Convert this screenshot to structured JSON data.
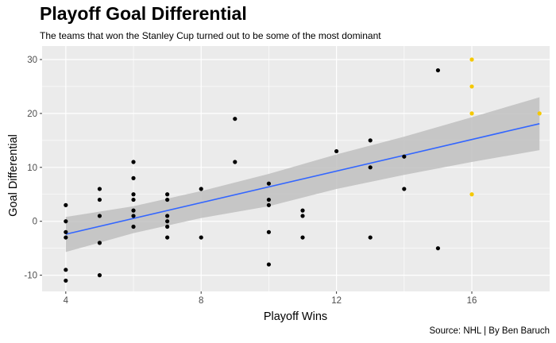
{
  "title": "Playoff Goal Differential",
  "subtitle": "The teams that won the Stanley Cup turned out to be some of the most dominant",
  "caption": "Source: NHL | By Ben Baruch",
  "chart_data": {
    "type": "scatter",
    "xlabel": "Playoff Wins",
    "ylabel": "Goal Differential",
    "xlim": [
      3.3,
      18.3
    ],
    "ylim": [
      -13,
      32.5
    ],
    "x_ticks": [
      4,
      8,
      12,
      16
    ],
    "y_ticks": [
      -10,
      0,
      10,
      20,
      30
    ],
    "x_tick_labels": [
      "4",
      "8",
      "12",
      "16"
    ],
    "y_tick_labels": [
      "-10",
      "0",
      "10",
      "20",
      "30"
    ],
    "grid": true,
    "colors": {
      "panel": "#ebebeb",
      "grid": "#ffffff",
      "point": "#000000",
      "champion": "#f5c800",
      "trend": "#3366ff",
      "band": "#c0c0c0"
    },
    "points": [
      {
        "x": 4,
        "y": 3
      },
      {
        "x": 4,
        "y": 0
      },
      {
        "x": 4,
        "y": -2
      },
      {
        "x": 4,
        "y": -3
      },
      {
        "x": 4,
        "y": -9
      },
      {
        "x": 4,
        "y": -11
      },
      {
        "x": 5,
        "y": 6
      },
      {
        "x": 5,
        "y": 4
      },
      {
        "x": 5,
        "y": 1
      },
      {
        "x": 5,
        "y": -4
      },
      {
        "x": 5,
        "y": -10
      },
      {
        "x": 6,
        "y": 11
      },
      {
        "x": 6,
        "y": 8
      },
      {
        "x": 6,
        "y": 5
      },
      {
        "x": 6,
        "y": 4
      },
      {
        "x": 6,
        "y": 2
      },
      {
        "x": 6,
        "y": 1
      },
      {
        "x": 6,
        "y": -1
      },
      {
        "x": 7,
        "y": 5
      },
      {
        "x": 7,
        "y": 4
      },
      {
        "x": 7,
        "y": 1
      },
      {
        "x": 7,
        "y": 0
      },
      {
        "x": 7,
        "y": -1
      },
      {
        "x": 7,
        "y": -3
      },
      {
        "x": 8,
        "y": 6
      },
      {
        "x": 8,
        "y": -3
      },
      {
        "x": 9,
        "y": 19
      },
      {
        "x": 9,
        "y": 11
      },
      {
        "x": 10,
        "y": 7
      },
      {
        "x": 10,
        "y": 4
      },
      {
        "x": 10,
        "y": 3
      },
      {
        "x": 10,
        "y": -2
      },
      {
        "x": 10,
        "y": -8
      },
      {
        "x": 11,
        "y": 2
      },
      {
        "x": 11,
        "y": 1
      },
      {
        "x": 11,
        "y": -3
      },
      {
        "x": 12,
        "y": 13
      },
      {
        "x": 13,
        "y": 15
      },
      {
        "x": 13,
        "y": 10
      },
      {
        "x": 13,
        "y": -3
      },
      {
        "x": 14,
        "y": 12
      },
      {
        "x": 14,
        "y": 6
      },
      {
        "x": 15,
        "y": 28
      },
      {
        "x": 15,
        "y": -5
      }
    ],
    "champions": [
      {
        "x": 16,
        "y": 30
      },
      {
        "x": 16,
        "y": 25
      },
      {
        "x": 16,
        "y": 20
      },
      {
        "x": 16,
        "y": 5
      },
      {
        "x": 18,
        "y": 20
      }
    ],
    "trend": {
      "x": [
        4,
        18
      ],
      "y": [
        -2.4,
        18.1
      ]
    },
    "band": {
      "x": [
        4,
        6,
        8,
        10,
        12,
        14,
        16,
        18
      ],
      "lower": [
        -5.7,
        -2.2,
        0.6,
        2.8,
        6.0,
        8.6,
        11.0,
        13.2
      ],
      "upper": [
        0.8,
        2.8,
        5.6,
        8.8,
        12.4,
        15.7,
        19.3,
        23.0
      ]
    }
  }
}
